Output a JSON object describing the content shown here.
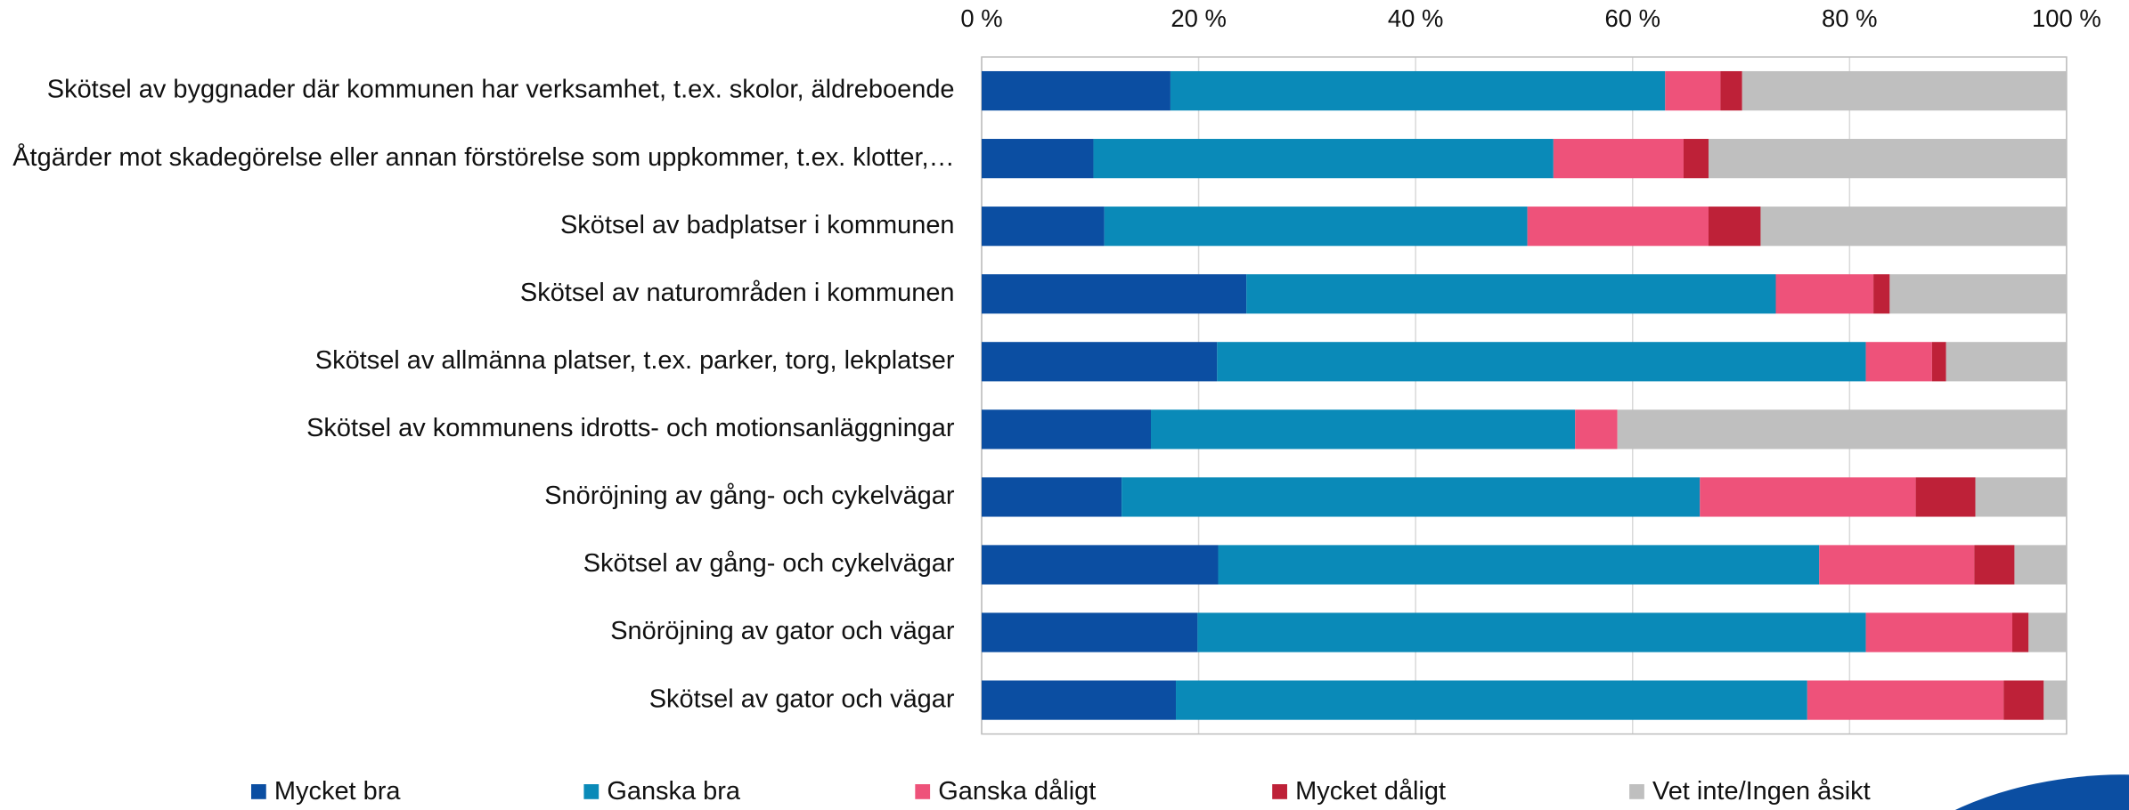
{
  "chart_data": {
    "type": "stacked-bar-horizontal",
    "categories": [
      "Skötsel av byggnader där kommunen har verksamhet, t.ex. skolor, äldreboende",
      "Åtgärder mot skadegörelse eller annan förstörelse som uppkommer, t.ex. klotter,…",
      "Skötsel av badplatser i kommunen",
      "Skötsel av naturområden i kommunen",
      "Skötsel av allmänna platser, t.ex. parker, torg, lekplatser",
      "Skötsel av kommunens idrotts- och motionsanläggningar",
      "Snöröjning av gång- och cykelvägar",
      "Skötsel av gång- och cykelvägar",
      "Snöröjning av gator och vägar",
      "Skötsel av gator och vägar"
    ],
    "series": [
      {
        "name": "Mycket bra",
        "color": "#0b4ea2",
        "values": [
          17.4,
          10.3,
          11.3,
          24.4,
          21.7,
          15.6,
          12.9,
          21.8,
          19.9,
          17.9
        ]
      },
      {
        "name": "Ganska bra",
        "color": "#0a8ab8",
        "values": [
          45.6,
          42.4,
          39.0,
          48.8,
          59.8,
          39.1,
          53.3,
          55.4,
          61.6,
          58.2
        ]
      },
      {
        "name": "Ganska dåligt",
        "color": "#ee527a",
        "values": [
          5.1,
          12.0,
          16.7,
          9.0,
          6.1,
          3.9,
          19.9,
          14.3,
          13.5,
          18.1
        ]
      },
      {
        "name": "Mycket dåligt",
        "color": "#be2138",
        "values": [
          2.0,
          2.3,
          4.8,
          1.5,
          1.3,
          0,
          5.5,
          3.7,
          1.5,
          3.7
        ]
      },
      {
        "name": "Vet inte/Ingen åsikt",
        "color": "#bfbfbf",
        "values": [
          29.9,
          33.0,
          28.2,
          16.3,
          11.1,
          41.4,
          8.4,
          4.8,
          3.5,
          2.1
        ]
      }
    ],
    "xlim": [
      0,
      100
    ],
    "xticks": [
      {
        "value": 0,
        "label": "0 %"
      },
      {
        "value": 20,
        "label": "20 %"
      },
      {
        "value": 40,
        "label": "40 %"
      },
      {
        "value": 60,
        "label": "60 %"
      },
      {
        "value": 80,
        "label": "80 %"
      },
      {
        "value": 100,
        "label": "100 %"
      }
    ],
    "grid": true
  }
}
